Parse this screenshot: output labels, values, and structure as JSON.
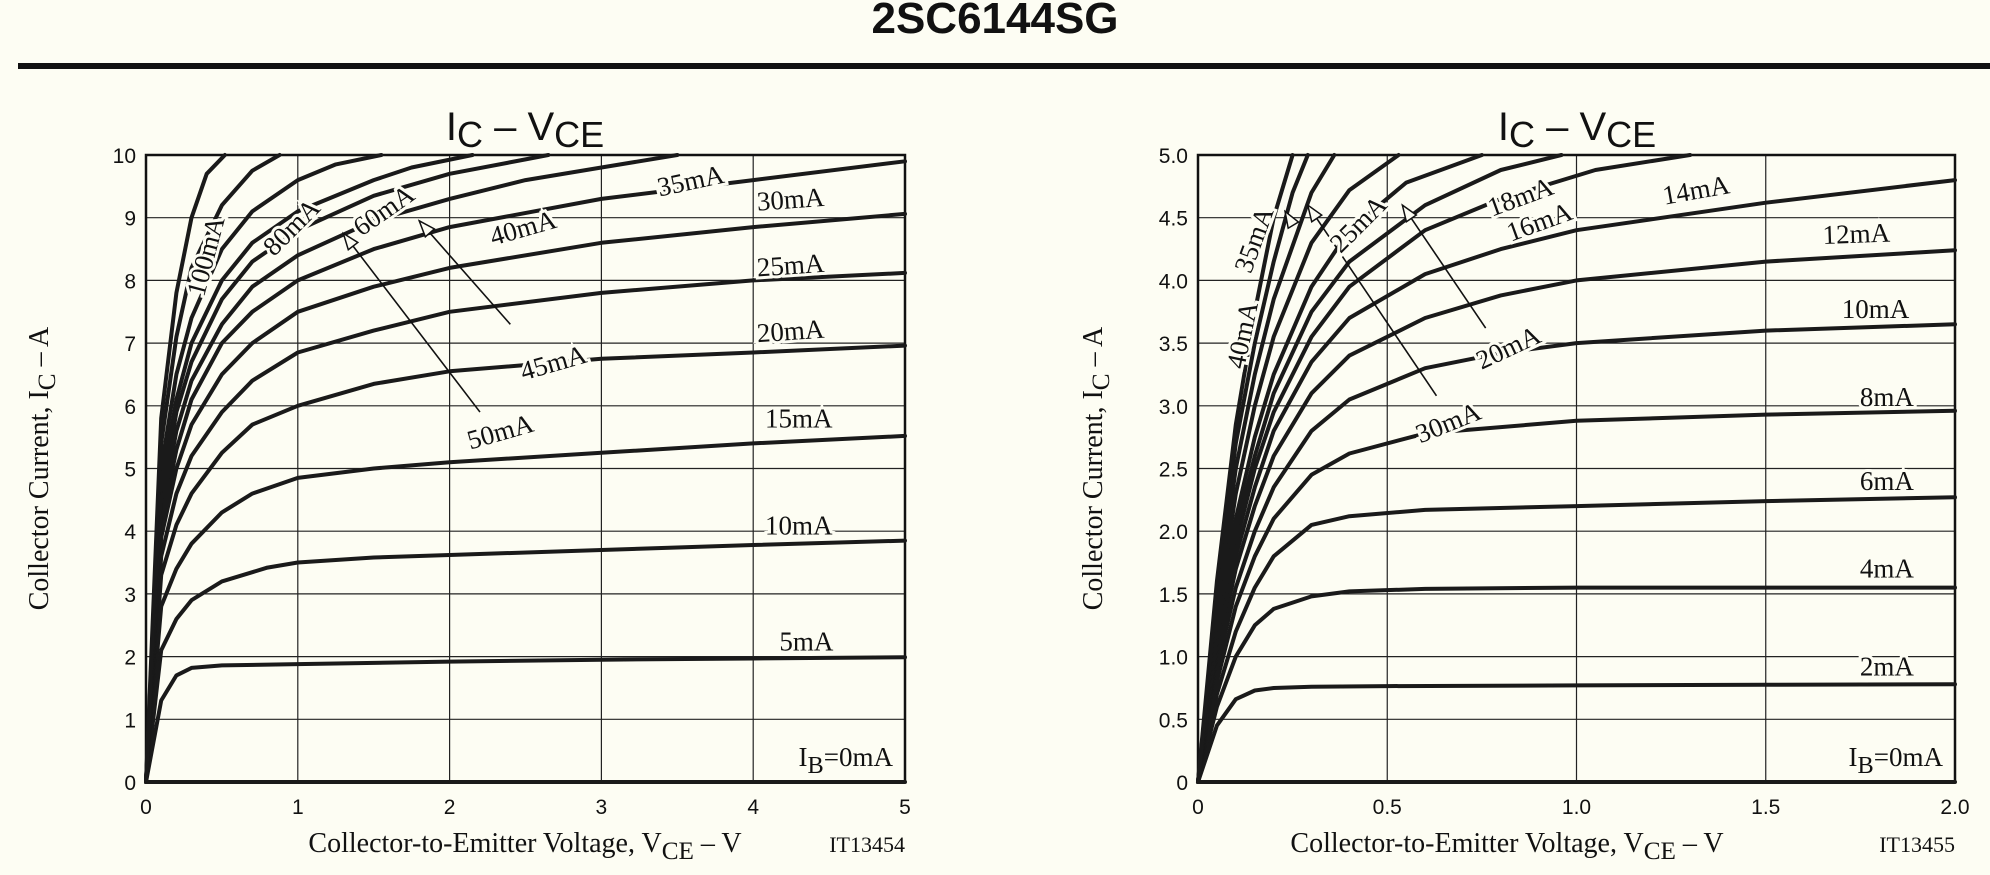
{
  "header": {
    "title": "2SC6144SG"
  },
  "chart_data": [
    {
      "type": "line",
      "title": {
        "main": "I",
        "sub1": "C",
        "sep": " – ",
        "v": "V",
        "sub2": "CE"
      },
      "xlabel": {
        "pre": "Collector-to-Emitter Voltage, V",
        "sub": "CE",
        "post": " – V"
      },
      "ylabel": {
        "pre": "Collector Current, I",
        "sub": "C",
        "post": " – A"
      },
      "code": "IT13454",
      "xlim": [
        0,
        5
      ],
      "ylim": [
        0,
        10
      ],
      "xticks": [
        "0",
        "1",
        "2",
        "3",
        "4",
        "5"
      ],
      "yticks": [
        "0",
        "1",
        "2",
        "3",
        "4",
        "5",
        "6",
        "7",
        "8",
        "9",
        "10"
      ],
      "grid": true,
      "ib0_label": {
        "pre": "I",
        "sub": "B",
        "post": "=0mA"
      },
      "series": [
        {
          "name": "5mA",
          "x": [
            0,
            0.1,
            0.2,
            0.3,
            0.5,
            1,
            2,
            3,
            4,
            5
          ],
          "y": [
            0,
            1.3,
            1.7,
            1.82,
            1.86,
            1.88,
            1.92,
            1.95,
            1.97,
            1.99
          ]
        },
        {
          "name": "10mA",
          "x": [
            0,
            0.1,
            0.2,
            0.3,
            0.5,
            0.8,
            1,
            1.5,
            2,
            3,
            4,
            5
          ],
          "y": [
            0,
            2.1,
            2.6,
            2.9,
            3.2,
            3.42,
            3.5,
            3.58,
            3.62,
            3.7,
            3.78,
            3.85
          ]
        },
        {
          "name": "15mA",
          "x": [
            0,
            0.1,
            0.2,
            0.3,
            0.5,
            0.7,
            1,
            1.5,
            2,
            3,
            4,
            5
          ],
          "y": [
            0,
            2.8,
            3.4,
            3.8,
            4.3,
            4.6,
            4.85,
            5.0,
            5.1,
            5.25,
            5.4,
            5.52
          ]
        },
        {
          "name": "20mA",
          "x": [
            0,
            0.1,
            0.2,
            0.3,
            0.5,
            0.7,
            1,
            1.5,
            2,
            3,
            4,
            5
          ],
          "y": [
            0,
            3.3,
            4.1,
            4.6,
            5.25,
            5.7,
            6.0,
            6.35,
            6.55,
            6.75,
            6.85,
            6.96
          ]
        },
        {
          "name": "25mA",
          "x": [
            0,
            0.1,
            0.2,
            0.3,
            0.5,
            0.7,
            1,
            1.5,
            2,
            3,
            4,
            5
          ],
          "y": [
            0,
            3.6,
            4.6,
            5.2,
            5.9,
            6.4,
            6.85,
            7.2,
            7.5,
            7.8,
            8.0,
            8.12
          ]
        },
        {
          "name": "30mA",
          "x": [
            0,
            0.1,
            0.2,
            0.3,
            0.5,
            0.7,
            1,
            1.5,
            2,
            3,
            4,
            5
          ],
          "y": [
            0,
            3.9,
            5.0,
            5.7,
            6.5,
            7.0,
            7.5,
            7.9,
            8.2,
            8.6,
            8.85,
            9.06
          ]
        },
        {
          "name": "35mA",
          "x": [
            0,
            0.1,
            0.2,
            0.3,
            0.5,
            0.7,
            1,
            1.5,
            2,
            3,
            4,
            5
          ],
          "y": [
            0,
            4.1,
            5.3,
            6.1,
            7.0,
            7.5,
            8.0,
            8.5,
            8.85,
            9.3,
            9.6,
            9.9
          ]
        },
        {
          "name": "40mA",
          "x": [
            0,
            0.1,
            0.2,
            0.3,
            0.5,
            0.7,
            1,
            1.5,
            2,
            2.5,
            3,
            3.5
          ],
          "y": [
            0,
            4.3,
            5.6,
            6.4,
            7.3,
            7.9,
            8.4,
            8.95,
            9.3,
            9.6,
            9.8,
            10
          ]
        },
        {
          "name": "45mA",
          "x": [
            0,
            0.1,
            0.2,
            0.3,
            0.5,
            0.7,
            1,
            1.5,
            2,
            2.5,
            2.65
          ],
          "y": [
            0,
            4.5,
            5.9,
            6.7,
            7.7,
            8.3,
            8.8,
            9.35,
            9.7,
            9.93,
            10
          ]
        },
        {
          "name": "50mA",
          "x": [
            0,
            0.1,
            0.2,
            0.3,
            0.5,
            0.7,
            1,
            1.5,
            1.75,
            2.15
          ],
          "y": [
            0,
            4.7,
            6.1,
            7.0,
            8.0,
            8.6,
            9.1,
            9.6,
            9.8,
            10
          ]
        },
        {
          "name": "60mA",
          "x": [
            0,
            0.1,
            0.2,
            0.3,
            0.5,
            0.7,
            1,
            1.25,
            1.55
          ],
          "y": [
            0,
            5.0,
            6.5,
            7.4,
            8.5,
            9.1,
            9.6,
            9.85,
            10
          ]
        },
        {
          "name": "80mA",
          "x": [
            0,
            0.1,
            0.2,
            0.3,
            0.5,
            0.7,
            0.88
          ],
          "y": [
            0,
            5.4,
            7.1,
            8.2,
            9.2,
            9.75,
            10
          ]
        },
        {
          "name": "100mA",
          "x": [
            0,
            0.1,
            0.2,
            0.3,
            0.4,
            0.52
          ],
          "y": [
            0,
            5.8,
            7.8,
            9.0,
            9.7,
            10
          ]
        },
        {
          "name": "IB=0mA",
          "x": [
            0,
            5
          ],
          "y": [
            0,
            0
          ]
        }
      ],
      "curve_labels": [
        {
          "text": "5mA",
          "x": 4.35,
          "y": 2.1,
          "rot": 0
        },
        {
          "text": "10mA",
          "x": 4.3,
          "y": 3.95,
          "rot": 0
        },
        {
          "text": "15mA",
          "x": 4.3,
          "y": 5.65,
          "rot": 0
        },
        {
          "text": "20mA",
          "x": 4.25,
          "y": 7.05,
          "rot": -4
        },
        {
          "text": "25mA",
          "x": 4.25,
          "y": 8.1,
          "rot": -4
        },
        {
          "text": "30mA",
          "x": 4.25,
          "y": 9.15,
          "rot": -4
        },
        {
          "text": "35mA",
          "x": 3.6,
          "y": 9.45,
          "rot": -12
        },
        {
          "text": "40mA",
          "x": 2.5,
          "y": 8.7,
          "rot": -16
        },
        {
          "text": "45mA",
          "x": 2.7,
          "y": 6.55,
          "rot": -16
        },
        {
          "text": "50mA",
          "x": 2.35,
          "y": 5.45,
          "rot": -16
        },
        {
          "text": "60mA",
          "x": 1.6,
          "y": 9.0,
          "rot": -35
        },
        {
          "text": "80mA",
          "x": 1.0,
          "y": 8.75,
          "rot": -45
        },
        {
          "text": "100mA",
          "x": 0.45,
          "y": 8.35,
          "rot": -75
        }
      ],
      "arrows": [
        {
          "from": [
            2.2,
            5.9
          ],
          "to": [
            1.3,
            8.75
          ]
        },
        {
          "from": [
            2.4,
            7.3
          ],
          "to": [
            1.8,
            8.95
          ]
        }
      ]
    },
    {
      "type": "line",
      "title": {
        "main": "I",
        "sub1": "C",
        "sep": " – ",
        "v": "V",
        "sub2": "CE"
      },
      "xlabel": {
        "pre": "Collector-to-Emitter Voltage, V",
        "sub": "CE",
        "post": " – V"
      },
      "ylabel": {
        "pre": "Collector Current, I",
        "sub": "C",
        "post": " – A"
      },
      "code": "IT13455",
      "xlim": [
        0,
        2
      ],
      "ylim": [
        0,
        5
      ],
      "xticks": [
        "0",
        "0.5",
        "1.0",
        "1.5",
        "2.0"
      ],
      "yticks": [
        "0",
        "0.5",
        "1.0",
        "1.5",
        "2.0",
        "2.5",
        "3.0",
        "3.5",
        "4.0",
        "4.5",
        "5.0"
      ],
      "grid": true,
      "ib0_label": {
        "pre": "I",
        "sub": "B",
        "post": "=0mA"
      },
      "series": [
        {
          "name": "2mA",
          "x": [
            0,
            0.05,
            0.1,
            0.15,
            0.2,
            0.3,
            0.5,
            1,
            1.5,
            2
          ],
          "y": [
            0,
            0.45,
            0.66,
            0.73,
            0.75,
            0.76,
            0.765,
            0.77,
            0.775,
            0.78
          ]
        },
        {
          "name": "4mA",
          "x": [
            0,
            0.05,
            0.1,
            0.15,
            0.2,
            0.3,
            0.4,
            0.6,
            1,
            1.5,
            2
          ],
          "y": [
            0,
            0.6,
            1.0,
            1.25,
            1.38,
            1.48,
            1.52,
            1.54,
            1.55,
            1.55,
            1.55
          ]
        },
        {
          "name": "6mA",
          "x": [
            0,
            0.05,
            0.1,
            0.15,
            0.2,
            0.3,
            0.4,
            0.6,
            1,
            1.5,
            2
          ],
          "y": [
            0,
            0.7,
            1.2,
            1.55,
            1.8,
            2.05,
            2.12,
            2.17,
            2.2,
            2.24,
            2.27
          ]
        },
        {
          "name": "8mA",
          "x": [
            0,
            0.05,
            0.1,
            0.15,
            0.2,
            0.3,
            0.4,
            0.6,
            1,
            1.5,
            2
          ],
          "y": [
            0,
            0.8,
            1.4,
            1.8,
            2.1,
            2.45,
            2.62,
            2.78,
            2.88,
            2.93,
            2.96
          ]
        },
        {
          "name": "10mA",
          "x": [
            0,
            0.05,
            0.1,
            0.15,
            0.2,
            0.3,
            0.4,
            0.6,
            0.8,
            1,
            1.5,
            2
          ],
          "y": [
            0,
            0.9,
            1.55,
            2.0,
            2.35,
            2.8,
            3.05,
            3.3,
            3.42,
            3.5,
            3.6,
            3.65
          ]
        },
        {
          "name": "12mA",
          "x": [
            0,
            0.05,
            0.1,
            0.15,
            0.2,
            0.3,
            0.4,
            0.6,
            0.8,
            1,
            1.5,
            2
          ],
          "y": [
            0,
            1.0,
            1.7,
            2.2,
            2.6,
            3.1,
            3.4,
            3.7,
            3.88,
            4.0,
            4.15,
            4.24
          ]
        },
        {
          "name": "14mA",
          "x": [
            0,
            0.05,
            0.1,
            0.15,
            0.2,
            0.3,
            0.4,
            0.6,
            0.8,
            1,
            1.5,
            2
          ],
          "y": [
            0,
            1.05,
            1.8,
            2.35,
            2.8,
            3.35,
            3.7,
            4.05,
            4.25,
            4.4,
            4.62,
            4.8
          ]
        },
        {
          "name": "16mA",
          "x": [
            0,
            0.05,
            0.1,
            0.15,
            0.2,
            0.3,
            0.4,
            0.6,
            0.8,
            1.05,
            1.3
          ],
          "y": [
            0,
            1.1,
            1.9,
            2.5,
            2.95,
            3.55,
            3.95,
            4.4,
            4.65,
            4.88,
            5.0
          ]
        },
        {
          "name": "18mA",
          "x": [
            0,
            0.05,
            0.1,
            0.15,
            0.2,
            0.3,
            0.4,
            0.6,
            0.8,
            0.96
          ],
          "y": [
            0,
            1.15,
            2.0,
            2.6,
            3.1,
            3.75,
            4.15,
            4.6,
            4.88,
            5.0
          ]
        },
        {
          "name": "20mA",
          "x": [
            0,
            0.05,
            0.1,
            0.15,
            0.2,
            0.3,
            0.4,
            0.55,
            0.75
          ],
          "y": [
            0,
            1.2,
            2.1,
            2.75,
            3.25,
            3.95,
            4.4,
            4.78,
            5.0
          ]
        },
        {
          "name": "25mA",
          "x": [
            0,
            0.05,
            0.1,
            0.15,
            0.2,
            0.3,
            0.4,
            0.53
          ],
          "y": [
            0,
            1.3,
            2.3,
            3.0,
            3.55,
            4.3,
            4.72,
            5.0
          ]
        },
        {
          "name": "30mA",
          "x": [
            0,
            0.05,
            0.1,
            0.15,
            0.2,
            0.3,
            0.36
          ],
          "y": [
            0,
            1.4,
            2.5,
            3.25,
            3.85,
            4.7,
            5.0
          ]
        },
        {
          "name": "35mA",
          "x": [
            0,
            0.05,
            0.1,
            0.15,
            0.2,
            0.25,
            0.29
          ],
          "y": [
            0,
            1.5,
            2.7,
            3.5,
            4.15,
            4.7,
            5.0
          ]
        },
        {
          "name": "40mA",
          "x": [
            0,
            0.05,
            0.1,
            0.15,
            0.2,
            0.25
          ],
          "y": [
            0,
            1.6,
            2.85,
            3.75,
            4.5,
            5.0
          ]
        },
        {
          "name": "IB=0mA",
          "x": [
            0,
            2
          ],
          "y": [
            0,
            0
          ]
        }
      ],
      "curve_labels": [
        {
          "text": "2mA",
          "x": 1.82,
          "y": 0.85,
          "rot": 0
        },
        {
          "text": "4mA",
          "x": 1.82,
          "y": 1.63,
          "rot": 0
        },
        {
          "text": "6mA",
          "x": 1.82,
          "y": 2.33,
          "rot": 0
        },
        {
          "text": "8mA",
          "x": 1.82,
          "y": 3.0,
          "rot": 0
        },
        {
          "text": "10mA",
          "x": 1.79,
          "y": 3.7,
          "rot": 0
        },
        {
          "text": "12mA",
          "x": 1.74,
          "y": 4.3,
          "rot": -2
        },
        {
          "text": "14mA",
          "x": 1.32,
          "y": 4.65,
          "rot": -10
        },
        {
          "text": "16mA",
          "x": 0.91,
          "y": 4.4,
          "rot": -20
        },
        {
          "text": "18mA",
          "x": 0.86,
          "y": 4.6,
          "rot": -20
        },
        {
          "text": "20mA",
          "x": 0.83,
          "y": 3.4,
          "rot": -25
        },
        {
          "text": "25mA",
          "x": 0.44,
          "y": 4.4,
          "rot": -45
        },
        {
          "text": "30mA",
          "x": 0.67,
          "y": 2.8,
          "rot": -22
        },
        {
          "text": "35mA",
          "x": 0.17,
          "y": 4.3,
          "rot": -70
        },
        {
          "text": "40mA",
          "x": 0.14,
          "y": 3.55,
          "rot": -78
        }
      ],
      "arrows": [
        {
          "from": [
            0.63,
            3.08
          ],
          "to": [
            0.29,
            4.6
          ]
        },
        {
          "from": [
            0.76,
            3.62
          ],
          "to": [
            0.54,
            4.6
          ]
        },
        {
          "from": [
            0.25,
            4.45
          ],
          "to": [
            0.23,
            4.55
          ]
        }
      ]
    }
  ]
}
